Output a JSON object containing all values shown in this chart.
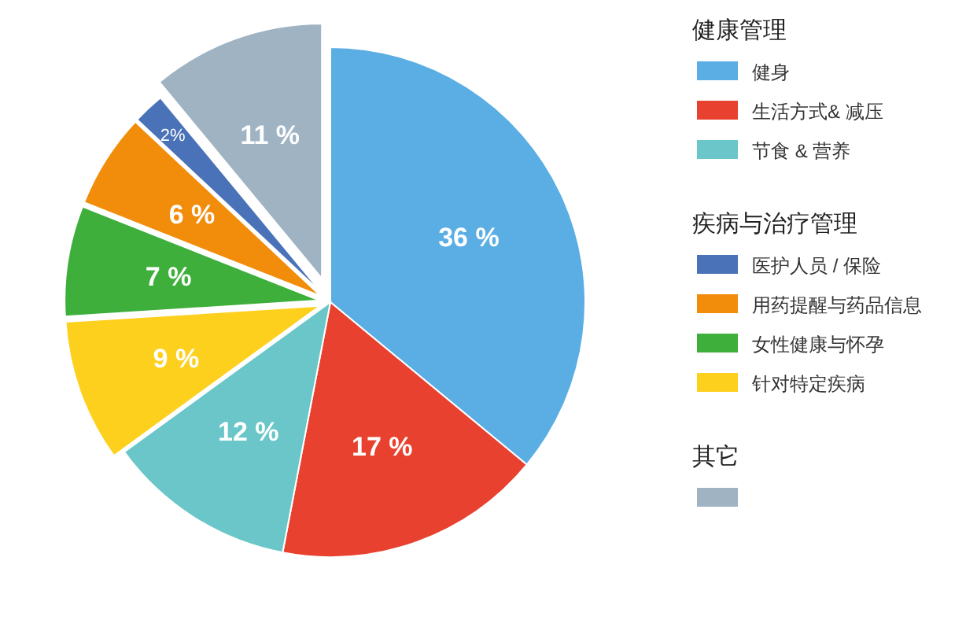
{
  "chart_data": {
    "type": "pie",
    "categories": [
      "健身",
      "生活方式& 减压",
      "节食 & 营养",
      "针对特定疾病",
      "女性健康与怀孕",
      "用药提醒与药品信息",
      "医护人员 / 保险",
      null
    ],
    "values": [
      36,
      17,
      12,
      9,
      7,
      6,
      2,
      11
    ],
    "colors": [
      "#5aaee3",
      "#e8412f",
      "#6ac6c8",
      "#fdd01e",
      "#3eaf3b",
      "#f18d0b",
      "#4a72b8",
      "#9fb3c3"
    ],
    "value_labels": [
      "36 %",
      "17 %",
      "12 %",
      "9 %",
      "7 %",
      "6 %",
      "2%",
      "11 %"
    ],
    "annotations": [
      "健康管理",
      "疾病与治疗管理",
      "其它"
    ],
    "legend": "right"
  }
}
